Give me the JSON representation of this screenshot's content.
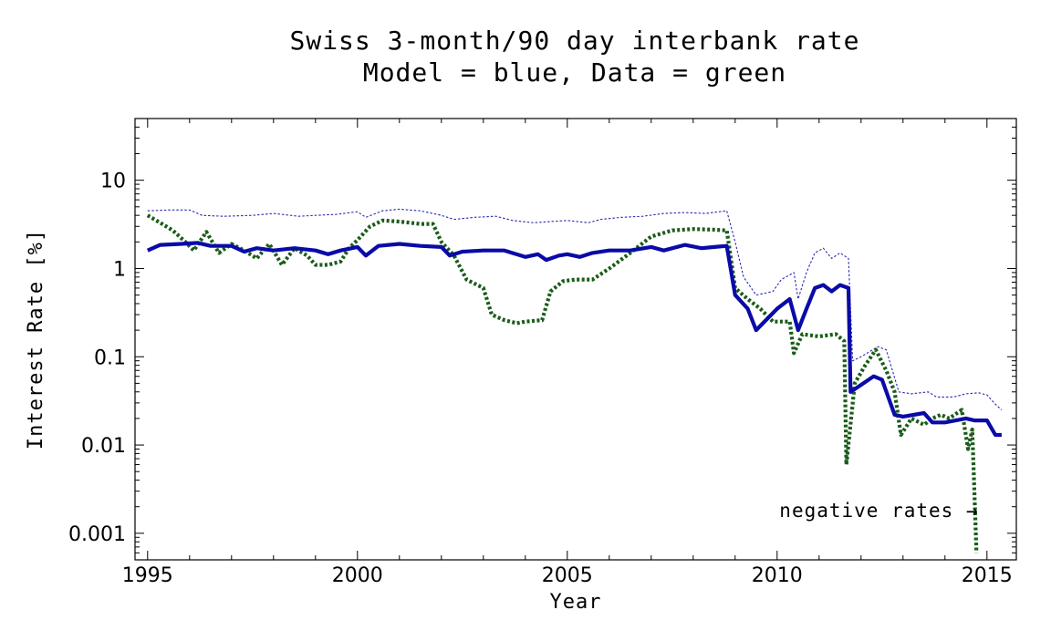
{
  "chart_data": {
    "type": "line",
    "title": "Swiss 3-month/90 day interbank rate",
    "subtitle": "Model = blue, Data = green",
    "xlabel": "Year",
    "ylabel": "Interest Rate [%]",
    "xlim": [
      1994.7,
      2015.7
    ],
    "ylim": [
      0.0005,
      50
    ],
    "yscale": "log",
    "grid": false,
    "x_ticks": [
      1995,
      2000,
      2005,
      2010,
      2015
    ],
    "x_tick_labels": [
      "1995",
      "2000",
      "2005",
      "2010",
      "2015"
    ],
    "y_ticks": [
      0.001,
      0.01,
      0.1,
      1,
      10
    ],
    "y_tick_labels": [
      "0.001",
      "0.01",
      "0.1",
      "1",
      "10"
    ],
    "colors": {
      "model": "#0a0aa8",
      "data": "#1a5c1a",
      "upper_band": "#2a2ab0"
    },
    "annotation": {
      "text": "negative rates →",
      "x": 2014.8,
      "y": 0.0018
    },
    "series": [
      {
        "key": "model",
        "style": "solid-thick",
        "points": [
          [
            1995.0,
            1.6
          ],
          [
            1995.3,
            1.85
          ],
          [
            1995.8,
            1.9
          ],
          [
            1996.2,
            1.95
          ],
          [
            1996.5,
            1.8
          ],
          [
            1997.0,
            1.8
          ],
          [
            1997.3,
            1.55
          ],
          [
            1997.6,
            1.7
          ],
          [
            1998.0,
            1.6
          ],
          [
            1998.5,
            1.7
          ],
          [
            1999.0,
            1.6
          ],
          [
            1999.3,
            1.45
          ],
          [
            1999.6,
            1.6
          ],
          [
            2000.0,
            1.75
          ],
          [
            2000.2,
            1.4
          ],
          [
            2000.5,
            1.8
          ],
          [
            2001.0,
            1.9
          ],
          [
            2001.5,
            1.8
          ],
          [
            2002.0,
            1.75
          ],
          [
            2002.2,
            1.4
          ],
          [
            2002.5,
            1.55
          ],
          [
            2003.0,
            1.6
          ],
          [
            2003.5,
            1.6
          ],
          [
            2004.0,
            1.35
          ],
          [
            2004.3,
            1.45
          ],
          [
            2004.5,
            1.25
          ],
          [
            2004.8,
            1.4
          ],
          [
            2005.0,
            1.45
          ],
          [
            2005.3,
            1.35
          ],
          [
            2005.6,
            1.5
          ],
          [
            2006.0,
            1.6
          ],
          [
            2006.5,
            1.6
          ],
          [
            2007.0,
            1.75
          ],
          [
            2007.3,
            1.6
          ],
          [
            2007.8,
            1.85
          ],
          [
            2008.2,
            1.7
          ],
          [
            2008.5,
            1.75
          ],
          [
            2008.8,
            1.8
          ],
          [
            2009.0,
            0.5
          ],
          [
            2009.3,
            0.35
          ],
          [
            2009.5,
            0.2
          ],
          [
            2009.8,
            0.28
          ],
          [
            2010.0,
            0.35
          ],
          [
            2010.3,
            0.45
          ],
          [
            2010.5,
            0.2
          ],
          [
            2010.7,
            0.35
          ],
          [
            2010.9,
            0.6
          ],
          [
            2011.1,
            0.65
          ],
          [
            2011.3,
            0.55
          ],
          [
            2011.5,
            0.65
          ],
          [
            2011.7,
            0.6
          ],
          [
            2011.75,
            0.04
          ],
          [
            2012.0,
            0.048
          ],
          [
            2012.3,
            0.06
          ],
          [
            2012.5,
            0.055
          ],
          [
            2012.8,
            0.022
          ],
          [
            2013.0,
            0.021
          ],
          [
            2013.5,
            0.023
          ],
          [
            2013.7,
            0.018
          ],
          [
            2014.0,
            0.018
          ],
          [
            2014.5,
            0.02
          ],
          [
            2014.7,
            0.019
          ],
          [
            2015.0,
            0.019
          ],
          [
            2015.2,
            0.013
          ],
          [
            2015.35,
            0.013
          ]
        ]
      },
      {
        "key": "data",
        "style": "dotted-thick",
        "points": [
          [
            1995.0,
            4.0
          ],
          [
            1995.3,
            3.3
          ],
          [
            1995.6,
            2.7
          ],
          [
            1995.9,
            2.0
          ],
          [
            1996.1,
            1.6
          ],
          [
            1996.4,
            2.6
          ],
          [
            1996.7,
            1.5
          ],
          [
            1997.0,
            1.9
          ],
          [
            1997.3,
            1.6
          ],
          [
            1997.6,
            1.3
          ],
          [
            1997.9,
            1.9
          ],
          [
            1998.2,
            1.1
          ],
          [
            1998.5,
            1.7
          ],
          [
            1998.8,
            1.4
          ],
          [
            1999.0,
            1.1
          ],
          [
            1999.3,
            1.1
          ],
          [
            1999.6,
            1.2
          ],
          [
            1999.8,
            1.7
          ],
          [
            2000.0,
            2.1
          ],
          [
            2000.3,
            3.0
          ],
          [
            2000.6,
            3.5
          ],
          [
            2001.0,
            3.4
          ],
          [
            2001.5,
            3.2
          ],
          [
            2001.8,
            3.2
          ],
          [
            2002.0,
            2.0
          ],
          [
            2002.3,
            1.4
          ],
          [
            2002.6,
            0.75
          ],
          [
            2003.0,
            0.6
          ],
          [
            2003.2,
            0.3
          ],
          [
            2003.5,
            0.26
          ],
          [
            2003.8,
            0.24
          ],
          [
            2004.0,
            0.25
          ],
          [
            2004.4,
            0.26
          ],
          [
            2004.6,
            0.55
          ],
          [
            2004.9,
            0.72
          ],
          [
            2005.2,
            0.75
          ],
          [
            2005.6,
            0.75
          ],
          [
            2006.0,
            1.0
          ],
          [
            2006.5,
            1.5
          ],
          [
            2007.0,
            2.3
          ],
          [
            2007.5,
            2.7
          ],
          [
            2008.0,
            2.8
          ],
          [
            2008.5,
            2.75
          ],
          [
            2008.8,
            2.7
          ],
          [
            2009.0,
            0.6
          ],
          [
            2009.3,
            0.45
          ],
          [
            2009.6,
            0.35
          ],
          [
            2009.9,
            0.25
          ],
          [
            2010.3,
            0.25
          ],
          [
            2010.4,
            0.11
          ],
          [
            2010.6,
            0.18
          ],
          [
            2011.0,
            0.17
          ],
          [
            2011.4,
            0.18
          ],
          [
            2011.6,
            0.15
          ],
          [
            2011.65,
            0.006
          ],
          [
            2011.85,
            0.05
          ],
          [
            2012.1,
            0.08
          ],
          [
            2012.35,
            0.12
          ],
          [
            2012.6,
            0.07
          ],
          [
            2012.8,
            0.04
          ],
          [
            2012.95,
            0.013
          ],
          [
            2013.2,
            0.02
          ],
          [
            2013.5,
            0.017
          ],
          [
            2013.7,
            0.02
          ],
          [
            2013.9,
            0.022
          ],
          [
            2014.1,
            0.02
          ],
          [
            2014.4,
            0.025
          ],
          [
            2014.55,
            0.009
          ],
          [
            2014.65,
            0.015
          ],
          [
            2014.75,
            0.0006
          ]
        ]
      },
      {
        "key": "upper_band",
        "style": "dotted-thin",
        "points": [
          [
            1995.0,
            4.5
          ],
          [
            1995.5,
            4.6
          ],
          [
            1996.0,
            4.6
          ],
          [
            1996.3,
            4.0
          ],
          [
            1996.8,
            3.9
          ],
          [
            1997.5,
            4.0
          ],
          [
            1998.0,
            4.2
          ],
          [
            1998.6,
            3.9
          ],
          [
            1999.0,
            4.0
          ],
          [
            1999.5,
            4.1
          ],
          [
            2000.0,
            4.4
          ],
          [
            2000.2,
            3.8
          ],
          [
            2000.6,
            4.5
          ],
          [
            2001.0,
            4.7
          ],
          [
            2001.5,
            4.5
          ],
          [
            2002.0,
            4.0
          ],
          [
            2002.3,
            3.6
          ],
          [
            2002.8,
            3.8
          ],
          [
            2003.3,
            3.9
          ],
          [
            2003.7,
            3.5
          ],
          [
            2004.2,
            3.3
          ],
          [
            2004.6,
            3.4
          ],
          [
            2005.0,
            3.5
          ],
          [
            2005.5,
            3.3
          ],
          [
            2005.8,
            3.6
          ],
          [
            2006.3,
            3.8
          ],
          [
            2006.8,
            3.9
          ],
          [
            2007.3,
            4.2
          ],
          [
            2007.8,
            4.3
          ],
          [
            2008.3,
            4.2
          ],
          [
            2008.8,
            4.5
          ],
          [
            2009.0,
            2.0
          ],
          [
            2009.2,
            0.8
          ],
          [
            2009.5,
            0.5
          ],
          [
            2009.9,
            0.55
          ],
          [
            2010.1,
            0.75
          ],
          [
            2010.4,
            0.9
          ],
          [
            2010.5,
            0.45
          ],
          [
            2010.7,
            0.9
          ],
          [
            2010.9,
            1.5
          ],
          [
            2011.1,
            1.7
          ],
          [
            2011.3,
            1.3
          ],
          [
            2011.5,
            1.5
          ],
          [
            2011.7,
            1.3
          ],
          [
            2011.8,
            0.09
          ],
          [
            2012.0,
            0.1
          ],
          [
            2012.4,
            0.13
          ],
          [
            2012.6,
            0.12
          ],
          [
            2012.9,
            0.04
          ],
          [
            2013.2,
            0.038
          ],
          [
            2013.6,
            0.04
          ],
          [
            2013.8,
            0.035
          ],
          [
            2014.2,
            0.035
          ],
          [
            2014.5,
            0.038
          ],
          [
            2014.8,
            0.039
          ],
          [
            2015.0,
            0.037
          ],
          [
            2015.2,
            0.029
          ],
          [
            2015.35,
            0.025
          ]
        ]
      }
    ]
  }
}
